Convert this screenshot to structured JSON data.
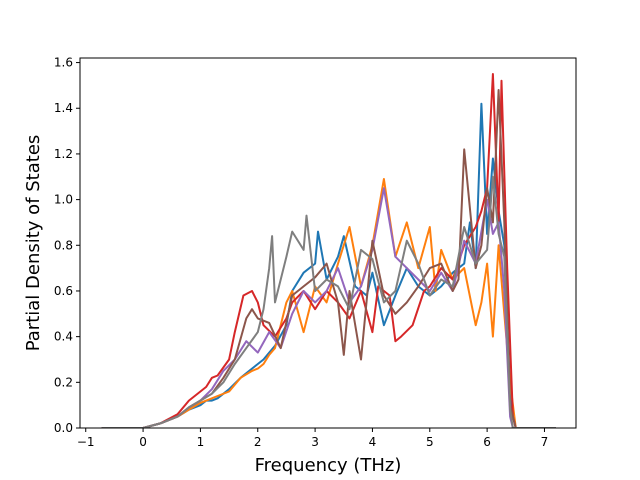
{
  "chart_data": {
    "type": "line",
    "title": "",
    "xlabel": "Frequency (THz)",
    "ylabel": "Partial Density of States",
    "xlim": [
      -1.1,
      7.55
    ],
    "ylim": [
      0.0,
      1.62
    ],
    "xticks": [
      -1,
      0,
      1,
      2,
      3,
      4,
      5,
      6,
      7
    ],
    "yticks": [
      0.0,
      0.2,
      0.4,
      0.6,
      0.8,
      1.0,
      1.2,
      1.4,
      1.6
    ],
    "tick_labels_x": [
      "−1",
      "0",
      "1",
      "2",
      "3",
      "4",
      "5",
      "6",
      "7"
    ],
    "tick_labels_y": [
      "0.0",
      "0.2",
      "0.4",
      "0.6",
      "0.8",
      "1.0",
      "1.2",
      "1.4",
      "1.6"
    ],
    "grid": false,
    "legend": "none",
    "series": [
      {
        "color": "#1f77b4",
        "x": [
          -0.72,
          0.0,
          0.3,
          0.6,
          0.8,
          1.0,
          1.1,
          1.2,
          1.3,
          1.5,
          1.7,
          1.9,
          2.0,
          2.1,
          2.2,
          2.3,
          2.5,
          2.6,
          2.8,
          3.0,
          3.05,
          3.2,
          3.4,
          3.5,
          3.7,
          3.9,
          4.0,
          4.2,
          4.4,
          4.6,
          4.8,
          5.0,
          5.2,
          5.4,
          5.6,
          5.7,
          5.8,
          5.9,
          6.0,
          6.1,
          6.2,
          6.3,
          6.4,
          6.45,
          6.5,
          7.2
        ],
        "values": [
          0,
          0,
          0.02,
          0.05,
          0.08,
          0.1,
          0.12,
          0.12,
          0.13,
          0.17,
          0.22,
          0.26,
          0.28,
          0.3,
          0.33,
          0.36,
          0.45,
          0.6,
          0.68,
          0.72,
          0.86,
          0.65,
          0.75,
          0.84,
          0.62,
          0.58,
          0.68,
          0.45,
          0.58,
          0.7,
          0.62,
          0.58,
          0.62,
          0.68,
          0.72,
          0.9,
          0.7,
          1.42,
          0.85,
          1.18,
          0.95,
          0.8,
          0.15,
          0.05,
          0,
          0
        ]
      },
      {
        "color": "#ff7f0e",
        "x": [
          -0.72,
          0.0,
          0.3,
          0.6,
          0.8,
          1.0,
          1.1,
          1.2,
          1.3,
          1.5,
          1.7,
          1.9,
          2.0,
          2.1,
          2.2,
          2.3,
          2.5,
          2.6,
          2.8,
          3.0,
          3.2,
          3.4,
          3.6,
          3.8,
          4.0,
          4.2,
          4.4,
          4.6,
          4.8,
          5.0,
          5.1,
          5.2,
          5.4,
          5.6,
          5.8,
          5.9,
          6.0,
          6.1,
          6.2,
          6.3,
          6.4,
          6.5,
          7.2
        ],
        "values": [
          0,
          0,
          0.02,
          0.05,
          0.08,
          0.11,
          0.12,
          0.13,
          0.14,
          0.16,
          0.22,
          0.25,
          0.26,
          0.28,
          0.32,
          0.35,
          0.55,
          0.6,
          0.42,
          0.62,
          0.55,
          0.72,
          0.88,
          0.62,
          0.8,
          1.09,
          0.75,
          0.9,
          0.7,
          0.88,
          0.6,
          0.78,
          0.65,
          0.7,
          0.45,
          0.55,
          0.72,
          0.4,
          0.8,
          0.5,
          0.2,
          0,
          0
        ]
      },
      {
        "color": "#d62728",
        "x": [
          -0.72,
          0.0,
          0.3,
          0.6,
          0.8,
          1.0,
          1.1,
          1.2,
          1.3,
          1.5,
          1.6,
          1.75,
          1.9,
          2.0,
          2.1,
          2.3,
          2.5,
          2.6,
          2.8,
          3.0,
          3.2,
          3.4,
          3.6,
          3.8,
          4.0,
          4.1,
          4.3,
          4.4,
          4.5,
          4.7,
          4.9,
          5.0,
          5.2,
          5.4,
          5.6,
          5.8,
          5.9,
          6.0,
          6.1,
          6.2,
          6.25,
          6.35,
          6.45,
          6.5,
          7.2
        ],
        "values": [
          0,
          0,
          0.02,
          0.06,
          0.12,
          0.16,
          0.18,
          0.22,
          0.23,
          0.3,
          0.42,
          0.58,
          0.6,
          0.55,
          0.45,
          0.4,
          0.48,
          0.55,
          0.6,
          0.52,
          0.6,
          0.55,
          0.48,
          0.6,
          0.42,
          0.62,
          0.58,
          0.38,
          0.4,
          0.45,
          0.6,
          0.62,
          0.7,
          0.65,
          0.8,
          0.88,
          0.95,
          1.05,
          1.55,
          0.9,
          1.52,
          0.7,
          0.05,
          0,
          0
        ]
      },
      {
        "color": "#9467bd",
        "x": [
          -0.72,
          0.0,
          0.3,
          0.6,
          0.8,
          1.0,
          1.2,
          1.4,
          1.6,
          1.8,
          2.0,
          2.2,
          2.4,
          2.6,
          2.8,
          3.0,
          3.2,
          3.4,
          3.6,
          3.8,
          4.0,
          4.2,
          4.4,
          4.6,
          4.8,
          5.0,
          5.2,
          5.4,
          5.6,
          5.8,
          6.0,
          6.1,
          6.2,
          6.3,
          6.4,
          6.45,
          7.2
        ],
        "values": [
          0,
          0,
          0.02,
          0.05,
          0.09,
          0.12,
          0.17,
          0.25,
          0.3,
          0.38,
          0.33,
          0.42,
          0.35,
          0.5,
          0.6,
          0.55,
          0.6,
          0.7,
          0.55,
          0.62,
          0.78,
          1.05,
          0.75,
          0.7,
          0.65,
          0.6,
          0.68,
          0.6,
          0.82,
          0.72,
          1.0,
          0.85,
          0.9,
          0.6,
          0.05,
          0,
          0
        ]
      },
      {
        "color": "#8c564b",
        "x": [
          -0.72,
          0.0,
          0.3,
          0.6,
          0.8,
          1.0,
          1.2,
          1.4,
          1.6,
          1.8,
          1.9,
          2.0,
          2.2,
          2.4,
          2.6,
          2.8,
          3.0,
          3.2,
          3.4,
          3.5,
          3.6,
          3.8,
          4.0,
          4.2,
          4.4,
          4.6,
          4.8,
          5.0,
          5.2,
          5.4,
          5.5,
          5.6,
          5.8,
          5.9,
          6.0,
          6.1,
          6.2,
          6.3,
          6.4,
          6.5,
          7.2
        ],
        "values": [
          0,
          0,
          0.02,
          0.05,
          0.09,
          0.12,
          0.15,
          0.22,
          0.3,
          0.48,
          0.52,
          0.48,
          0.46,
          0.35,
          0.58,
          0.62,
          0.66,
          0.72,
          0.55,
          0.32,
          0.6,
          0.3,
          0.82,
          0.58,
          0.5,
          0.55,
          0.62,
          0.7,
          0.72,
          0.6,
          0.65,
          1.22,
          0.7,
          0.8,
          1.05,
          0.9,
          1.48,
          0.9,
          0.1,
          0,
          0
        ]
      },
      {
        "color": "#7f7f7f",
        "x": [
          -0.72,
          0.0,
          0.3,
          0.6,
          0.8,
          1.0,
          1.2,
          1.4,
          1.6,
          1.8,
          2.0,
          2.1,
          2.2,
          2.25,
          2.3,
          2.5,
          2.6,
          2.8,
          2.85,
          3.0,
          3.2,
          3.4,
          3.6,
          3.8,
          4.0,
          4.2,
          4.4,
          4.6,
          4.8,
          5.0,
          5.2,
          5.4,
          5.6,
          5.8,
          6.0,
          6.1,
          6.2,
          6.3,
          6.4,
          6.45,
          7.2
        ],
        "values": [
          0,
          0,
          0.02,
          0.05,
          0.09,
          0.12,
          0.15,
          0.2,
          0.28,
          0.35,
          0.42,
          0.52,
          0.7,
          0.84,
          0.55,
          0.75,
          0.86,
          0.78,
          0.93,
          0.6,
          0.65,
          0.62,
          0.52,
          0.78,
          0.74,
          0.55,
          0.6,
          0.82,
          0.72,
          0.58,
          0.65,
          0.62,
          0.88,
          0.72,
          0.78,
          1.1,
          0.85,
          0.75,
          0.08,
          0,
          0
        ]
      }
    ]
  }
}
